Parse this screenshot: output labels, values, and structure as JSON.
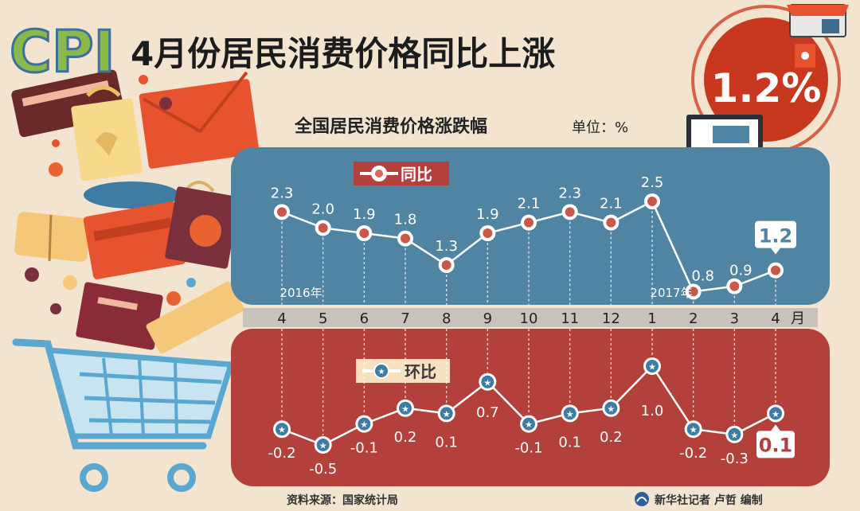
{
  "header": {
    "logo_text": "CPI",
    "title": "4月份居民消费价格同比上涨",
    "badge_value": "1.2%"
  },
  "chart_data": {
    "type": "line",
    "title": "全国居民消费价格涨跌幅",
    "unit_label": "单位：%",
    "categories": [
      "4",
      "5",
      "6",
      "7",
      "8",
      "9",
      "10",
      "11",
      "12",
      "1",
      "2",
      "3",
      "4"
    ],
    "month_suffix": "月",
    "year_labels": [
      {
        "text": "2016年",
        "at_index": 0
      },
      {
        "text": "2017年",
        "at_index": 9
      }
    ],
    "series": [
      {
        "name": "同比",
        "values": [
          2.3,
          2.0,
          1.9,
          1.8,
          1.3,
          1.9,
          2.1,
          2.3,
          2.1,
          2.5,
          0.8,
          0.9,
          1.2
        ],
        "labels": [
          "2.3",
          "2.0",
          "1.9",
          "1.8",
          "1.3",
          "1.9",
          "2.1",
          "2.3",
          "2.1",
          "2.5",
          "0.8",
          "0.9",
          "1.2"
        ],
        "color": "#4f84a3"
      },
      {
        "name": "环比",
        "values": [
          -0.2,
          -0.5,
          -0.1,
          0.2,
          0.1,
          0.7,
          -0.1,
          0.1,
          0.2,
          1.0,
          -0.2,
          -0.3,
          0.1
        ],
        "labels": [
          "-0.2",
          "-0.5",
          "-0.1",
          "0.2",
          "0.1",
          "0.7",
          "-0.1",
          "0.1",
          "0.2",
          "1.0",
          "-0.2",
          "-0.3",
          "0.1"
        ],
        "color": "#b4403c"
      }
    ],
    "grid": false,
    "legend": "top-left"
  },
  "footer": {
    "source": "资料来源：国家统计局",
    "credit": "新华社记者 卢哲 编制"
  },
  "colors": {
    "background": "#f3e4cf",
    "top_panel": "#4f84a3",
    "bottom_panel": "#b4403c",
    "axis_band": "#c9c2ba",
    "legend_chip": "#b4403c",
    "marker_ring": "#b4403c",
    "badge_red": "#c8381f"
  }
}
